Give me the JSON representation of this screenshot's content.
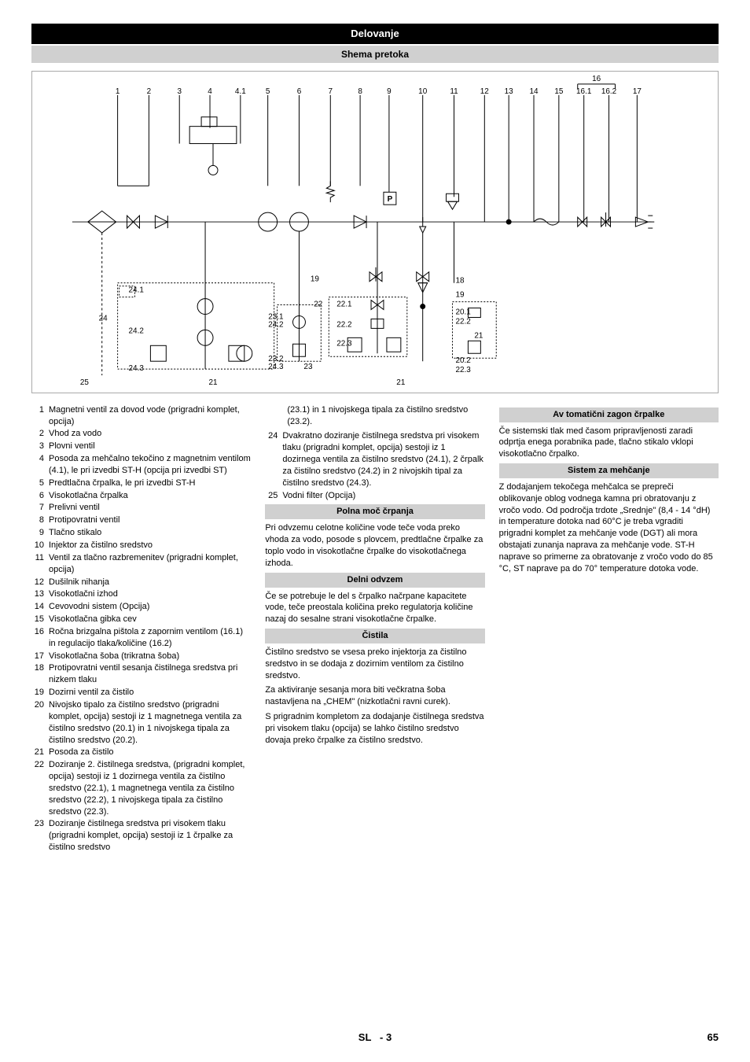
{
  "page_title": "Delovanje",
  "subtitle": "Shema pretoka",
  "diagram": {
    "top_labels": [
      "1",
      "2",
      "3",
      "4",
      "4.1",
      "5",
      "6",
      "7",
      "8",
      "9",
      "10",
      "11",
      "12",
      "13",
      "14",
      "15",
      "16.1",
      "16.2",
      "17"
    ],
    "top16": "16",
    "mid_labels": [
      "24.1",
      "24",
      "24.2",
      "24.3",
      "25",
      "21",
      "19",
      "23.1",
      "24.2",
      "23.2",
      "24.3",
      "23",
      "22",
      "22.1",
      "22.2",
      "22.3",
      "21",
      "18",
      "19",
      "20.1",
      "22.2",
      "21",
      "20.2",
      "22.3"
    ],
    "p_box": "P",
    "colors": {
      "line": "#000000",
      "bg": "#ffffff"
    }
  },
  "legend_col1": [
    {
      "n": "1",
      "t": "Magnetni ventil za dovod vode (prigradni komplet, opcija)"
    },
    {
      "n": "2",
      "t": "Vhod za vodo"
    },
    {
      "n": "3",
      "t": "Plovni ventil"
    },
    {
      "n": "4",
      "t": "Posoda za mehčalno tekočino z magnetnim ventilom (4.1), le pri izvedbi ST-H (opcija pri izvedbi ST)"
    },
    {
      "n": "5",
      "t": "Predtlačna črpalka, le pri izvedbi ST-H"
    },
    {
      "n": "6",
      "t": "Visokotlačna črpalka"
    },
    {
      "n": "7",
      "t": "Prelivni ventil"
    },
    {
      "n": "8",
      "t": "Protipovratni ventil"
    },
    {
      "n": "9",
      "t": "Tlačno stikalo"
    },
    {
      "n": "10",
      "t": "Injektor za čistilno sredstvo"
    },
    {
      "n": "11",
      "t": "Ventil za tlačno razbremenitev (prigradni komplet, opcija)"
    },
    {
      "n": "12",
      "t": "Dušilnik nihanja"
    },
    {
      "n": "13",
      "t": "Visokotlačni izhod"
    },
    {
      "n": "14",
      "t": "Cevovodni sistem (Opcija)"
    },
    {
      "n": "15",
      "t": "Visokotlačna gibka cev"
    },
    {
      "n": "16",
      "t": "Ročna brizgalna pištola z zapornim ventilom (16.1) in regulacijo tlaka/količine (16.2)"
    },
    {
      "n": "17",
      "t": "Visokotlačna šoba (trikratna šoba)"
    },
    {
      "n": "18",
      "t": "Protipovratni ventil sesanja čistilnega sredstva pri nizkem tlaku"
    },
    {
      "n": "19",
      "t": "Dozirni ventil za čistilo"
    },
    {
      "n": "20",
      "t": "Nivojsko tipalo za čistilno sredstvo (prigradni komplet, opcija) sestoji iz 1 magnetnega ventila za čistilno sredstvo (20.1) in 1 nivojskega tipala za čistilno sredstvo (20.2)."
    },
    {
      "n": "21",
      "t": "Posoda za čistilo"
    },
    {
      "n": "22",
      "t": "Doziranje 2. čistilnega sredstva, (prigradni komplet, opcija) sestoji iz 1 dozirnega ventila za čistilno sredstvo (22.1), 1 magnetnega ventila za čistilno sredstvo (22.2), 1 nivojskega tipala za čistilno sredstvo (22.3)."
    },
    {
      "n": "23",
      "t": "Doziranje čistilnega sredstva pri visokem tlaku (prigradni komplet, opcija) sestoji iz 1 črpalke za čistilno sredstvo"
    }
  ],
  "col2_top_text": "(23.1) in 1 nivojskega tipala za čistilno sredstvo (23.2).",
  "legend_col2": [
    {
      "n": "24",
      "t": "Dvakratno doziranje čistilnega sredstva pri visokem tlaku (prigradni komplet, opcija) sestoji iz 1 dozirnega ventila za čistilno sredstvo (24.1), 2 črpalk za čistilno sredstvo (24.2) in 2 nivojskih tipal za čistilno sredstvo (24.3)."
    },
    {
      "n": "25",
      "t": "Vodni filter (Opcija)"
    }
  ],
  "sections_col2": [
    {
      "title": "Polna moč črpanja",
      "body": "Pri odvzemu celotne količine vode teče voda preko vhoda za vodo, posode s plovcem, predtlačne črpalke za toplo vodo in visokotlačne črpalke do visokotlačnega izhoda."
    },
    {
      "title": "Delni odvzem",
      "body": "Če se potrebuje le del s črpalko načrpane kapacitete vode, teče preostala količina preko regulatorja količine nazaj do sesalne strani visokotlačne črpalke."
    },
    {
      "title": "Čistila",
      "body": "Čistilno sredstvo se vsesa preko injektorja za čistilno sredstvo in se dodaja z dozirnim ventilom za čistilno sredstvo.\nZa aktiviranje sesanja mora biti večkratna šoba nastavljena na „CHEM\" (nizkotlačni ravni curek).\nS prigradnim kompletom za dodajanje čistilnega sredstva pri visokem tlaku (opcija) se lahko čistilno sredstvo dovaja preko črpalke za čistilno sredstvo."
    }
  ],
  "sections_col3": [
    {
      "title": "Av tomatični zagon črpalke",
      "body": "Če sistemski tlak med časom pripravljenosti zaradi odprtja enega porabnika pade, tlačno stikalo vklopi visokotlačno črpalko."
    },
    {
      "title": "Sistem za mehčanje",
      "body": "Z dodajanjem tekočega mehčalca se prepreči oblikovanje oblog vodnega kamna pri obratovanju z vročo vodo. Od področja trdote „Srednje\" (8,4 - 14 °dH)  in temperature dotoka nad 60°C je treba vgraditi prigradni komplet za mehčanje vode (DGT) ali mora obstajati zunanja naprava za mehčanje vode. ST-H naprave so primerne za obratovanje z vročo vodo do 85 °C, ST naprave pa do 70° temperature dotoka vode."
    }
  ],
  "footer": {
    "lang": "SL",
    "sep": "-",
    "page": "3",
    "total": "65"
  }
}
